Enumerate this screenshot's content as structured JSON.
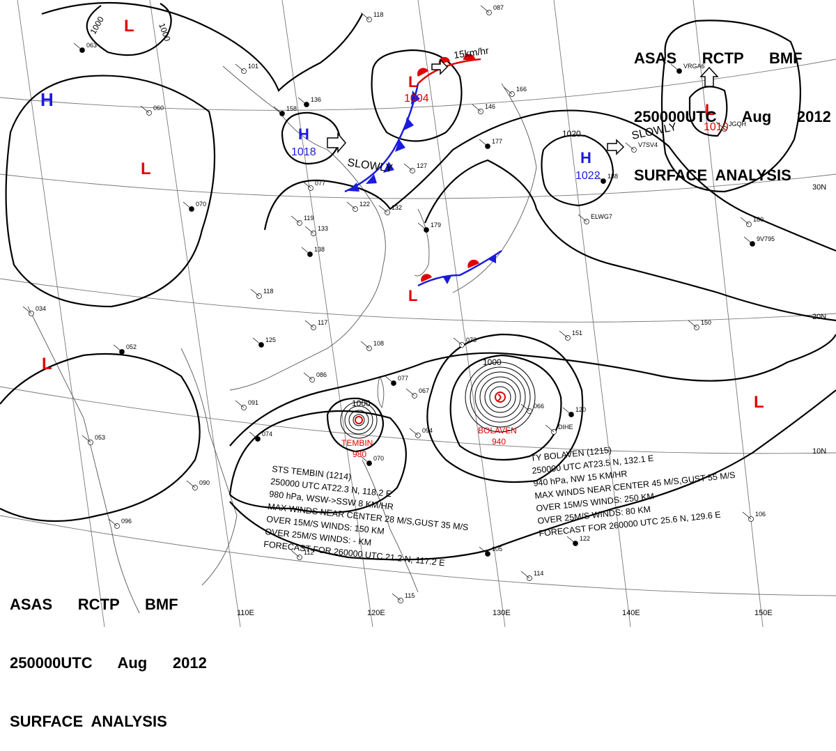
{
  "header_top": {
    "line1": "ASAS      RCTP      BMF",
    "line2": "250000UTC      Aug      2012",
    "line3": "SURFACE  ANALYSIS"
  },
  "header_bottom": {
    "line1": "ASAS      RCTP      BMF",
    "line2": "250000UTC      Aug      2012",
    "line3": "SURFACE  ANALYSIS"
  },
  "longitudes": [
    "110E",
    "120E",
    "130E",
    "140E",
    "150E"
  ],
  "latitudes": [
    "30N",
    "20N",
    "10N"
  ],
  "pressure_systems": [
    {
      "type": "H",
      "value": "",
      "color": "#1a1adf"
    },
    {
      "type": "H",
      "value": "1018",
      "color": "#1a1adf"
    },
    {
      "type": "H",
      "value": "1022",
      "color": "#1a1adf"
    },
    {
      "type": "L",
      "value": "",
      "color": "#e00000"
    },
    {
      "type": "L",
      "value": "",
      "color": "#e00000"
    },
    {
      "type": "L",
      "value": "1004",
      "color": "#e00000"
    },
    {
      "type": "L",
      "value": "1010",
      "color": "#e00000"
    },
    {
      "type": "L",
      "value": "",
      "color": "#e00000"
    },
    {
      "type": "L",
      "value": "",
      "color": "#e00000"
    },
    {
      "type": "L",
      "value": "",
      "color": "#e00000"
    }
  ],
  "isobar_labels": [
    "1000",
    "1000",
    "1020",
    "1000",
    "1000"
  ],
  "motion_labels": [
    "SLOWLY",
    "SLOWLY",
    "15km/hr"
  ],
  "typhoons": [
    {
      "name": "TEMBIN",
      "pressure": "980"
    },
    {
      "name": "BOLAVEN",
      "pressure": "940"
    }
  ],
  "tembin_info": [
    "STS  TEMBIN  (1214)",
    "250000 UTC  AT22.3 N, 118.2 E",
    "980 hPa, WSW->SSW  8 KM/HR",
    "MAX WINDS NEAR CENTER 28 M/S,GUST 35 M/S",
    "OVER 15M/S WINDS: 150 KM",
    "OVER 25M/S WINDS: - KM",
    "FORECAST FOR 260000 UTC 21.2 N, 117.2 E"
  ],
  "bolaven_info": [
    "TY  BOLAVEN  (1215)",
    "250000 UTC  AT23.5 N, 132.1 E",
    "940 hPa, NW  15 KM/HR",
    "MAX WINDS NEAR CENTER 45 M/S,GUST 55 M/S",
    "OVER 15M/S WINDS: 250 KM",
    "OVER 25M/S WINDS: 80 KM",
    "FORECAST FOR 260000 UTC 25.6 N, 129.6 E"
  ],
  "colors": {
    "high": "#1a1adf",
    "low": "#e00000",
    "front_cold": "#1a1adf",
    "front_warm": "#e00000",
    "isobar": "#000000",
    "grid": "#666666"
  },
  "station_labels": [
    "063",
    "101",
    "060",
    "158",
    "118",
    "087",
    "136",
    "166",
    "146",
    "177",
    "127",
    "077",
    "070",
    "119",
    "133",
    "138",
    "132",
    "122",
    "179",
    "118",
    "117",
    "125",
    "108",
    "086",
    "077",
    "067",
    "091",
    "074",
    "053",
    "034",
    "052",
    "096",
    "112",
    "070",
    "073",
    "066",
    "120",
    "151",
    "150",
    "188",
    "180",
    "106",
    "122",
    "114",
    "115",
    "105",
    "094",
    "090",
    "VRGA6",
    "JGQH",
    "ELWG7",
    "9V795",
    "V7SV4",
    "DIHE"
  ]
}
